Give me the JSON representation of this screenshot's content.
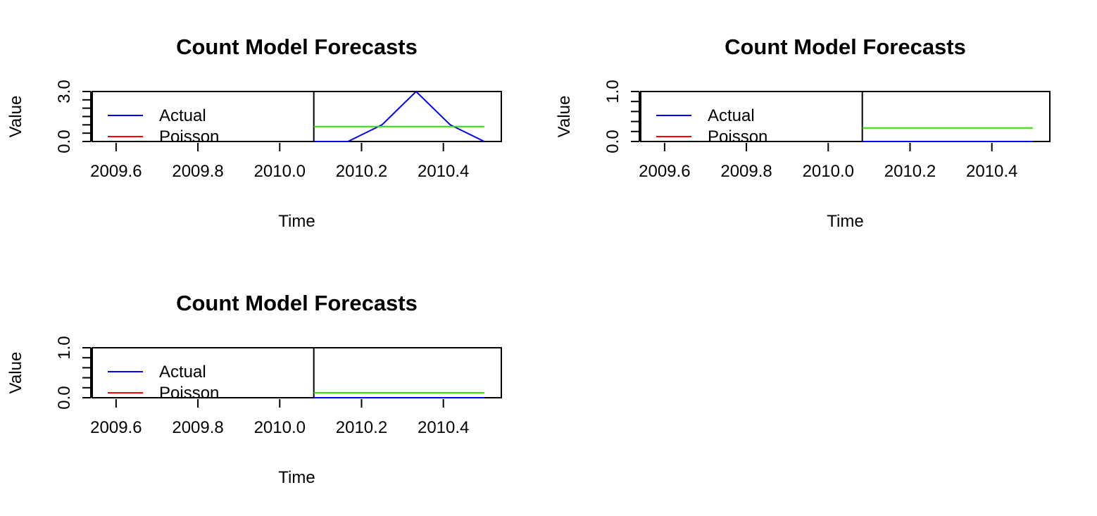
{
  "colors": {
    "actual": "#0000FF",
    "poisson": "#FF0000",
    "forecast": "#33DD00",
    "axis": "#000000",
    "background": "#FFFFFF"
  },
  "chart_data": [
    {
      "type": "line",
      "title": "Count Model Forecasts",
      "xlabel": "Time",
      "ylabel": "Value",
      "xlim": [
        2009.5417,
        2010.5417
      ],
      "ylim": [
        0,
        3
      ],
      "x_ticks": [
        "2009.6",
        "2009.8",
        "2010.0",
        "2010.2",
        "2010.4"
      ],
      "y_tick_labels": [
        "0.0",
        "3.0"
      ],
      "y_minor_ticks": [
        0,
        0.5,
        1,
        1.5,
        2,
        2.5,
        3
      ],
      "divider_x": 2010.0833,
      "legend": {
        "position": "top-left",
        "entries": [
          "Actual",
          "Poisson"
        ]
      },
      "series": [
        {
          "name": "Actual",
          "color_key": "actual",
          "x": [
            2010.0833,
            2010.1667,
            2010.25,
            2010.3333,
            2010.4167,
            2010.5
          ],
          "y": [
            0,
            0,
            1,
            3,
            1,
            0
          ]
        },
        {
          "color_key": "forecast",
          "x": [
            2010.0833,
            2010.5
          ],
          "y": [
            0.9,
            0.9
          ]
        },
        {
          "color_key": "axis",
          "x": [
            2010.0833,
            2010.5
          ],
          "y": [
            -0.05,
            -0.05
          ]
        }
      ]
    },
    {
      "type": "line",
      "title": "Count Model Forecasts",
      "xlabel": "Time",
      "ylabel": "Value",
      "xlim": [
        2009.5417,
        2010.5417
      ],
      "ylim": [
        0,
        1
      ],
      "x_ticks": [
        "2009.6",
        "2009.8",
        "2010.0",
        "2010.2",
        "2010.4"
      ],
      "y_tick_labels": [
        "0.0",
        "1.0"
      ],
      "y_minor_ticks": [
        0,
        0.2,
        0.4,
        0.6,
        0.8,
        1
      ],
      "divider_x": 2010.0833,
      "legend": {
        "position": "top-left",
        "entries": [
          "Actual",
          "Poisson"
        ]
      },
      "series": [
        {
          "name": "Actual",
          "color_key": "actual",
          "x": [
            2010.0833,
            2010.5
          ],
          "y": [
            0,
            0
          ]
        },
        {
          "color_key": "forecast",
          "x": [
            2010.0833,
            2010.5
          ],
          "y": [
            0.27,
            0.27
          ]
        }
      ]
    },
    {
      "type": "line",
      "title": "Count Model Forecasts",
      "xlabel": "Time",
      "ylabel": "Value",
      "xlim": [
        2009.5417,
        2010.5417
      ],
      "ylim": [
        0,
        1
      ],
      "x_ticks": [
        "2009.6",
        "2009.8",
        "2010.0",
        "2010.2",
        "2010.4"
      ],
      "y_tick_labels": [
        "0.0",
        "1.0"
      ],
      "y_minor_ticks": [
        0,
        0.2,
        0.4,
        0.6,
        0.8,
        1
      ],
      "divider_x": 2010.0833,
      "legend": {
        "position": "top-left",
        "entries": [
          "Actual",
          "Poisson"
        ]
      },
      "series": [
        {
          "name": "Actual",
          "color_key": "actual",
          "x": [
            2010.0833,
            2010.5
          ],
          "y": [
            0,
            0
          ]
        },
        {
          "color_key": "forecast",
          "x": [
            2010.0833,
            2010.5
          ],
          "y": [
            0.1,
            0.1
          ]
        }
      ]
    }
  ]
}
